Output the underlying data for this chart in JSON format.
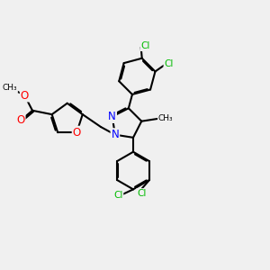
{
  "background_color": "#f0f0f0",
  "bond_color": "#000000",
  "bond_width": 1.5,
  "atom_colors": {
    "N": "#0000ff",
    "O": "#ff0000",
    "Cl": "#00bb00",
    "C": "#000000"
  },
  "font_size_atom": 7.5,
  "font_size_small": 6.5
}
